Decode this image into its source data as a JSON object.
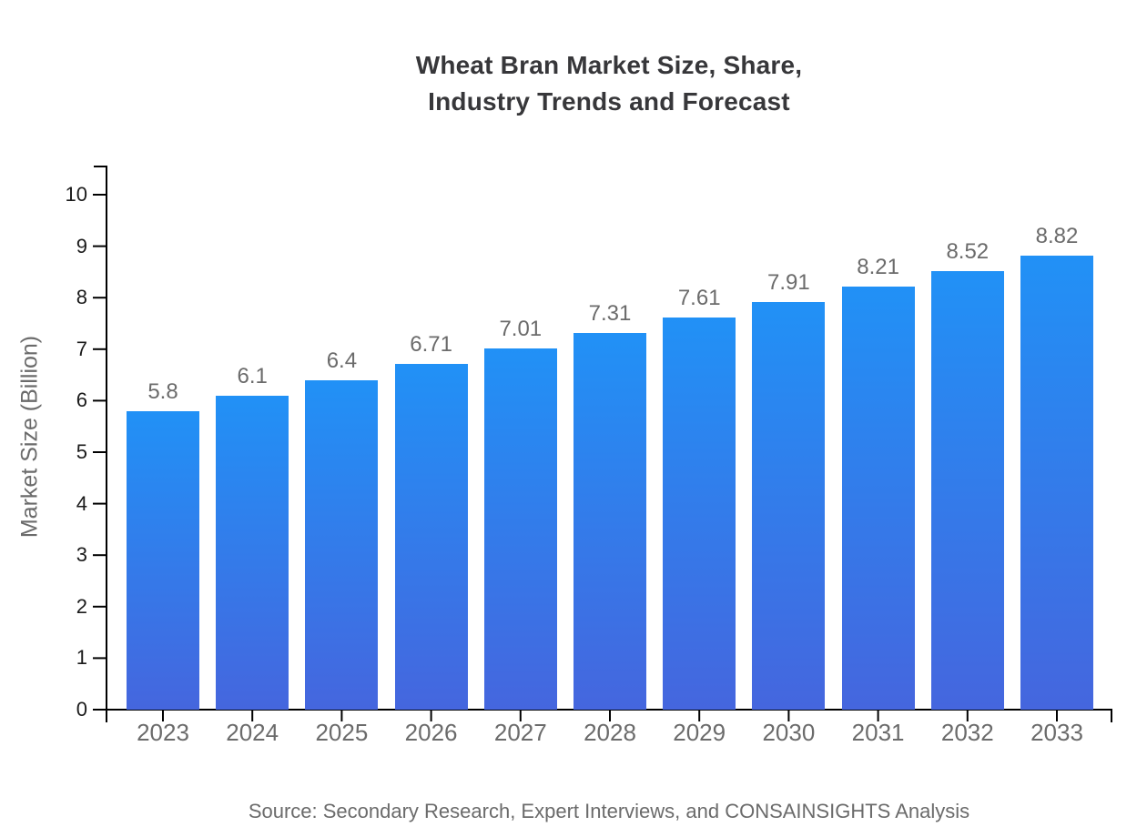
{
  "title": {
    "line1": "Wheat Bran Market Size, Share,",
    "line2": "Industry Trends and Forecast"
  },
  "source": "Source: Secondary Research, Expert Interviews, and CONSAINSIGHTS Analysis",
  "chart_data": {
    "type": "bar",
    "title": "Wheat Bran Market Size, Share, Industry Trends and Forecast",
    "categories": [
      "2023",
      "2024",
      "2025",
      "2026",
      "2027",
      "2028",
      "2029",
      "2030",
      "2031",
      "2032",
      "2033"
    ],
    "values": [
      5.8,
      6.1,
      6.4,
      6.71,
      7.01,
      7.31,
      7.61,
      7.91,
      8.21,
      8.52,
      8.82
    ],
    "value_labels": [
      "5.8",
      "6.1",
      "6.4",
      "6.71",
      "7.01",
      "7.31",
      "7.61",
      "7.91",
      "8.21",
      "8.52",
      "8.82"
    ],
    "xlabel": "",
    "ylabel": "Market Size (Billion)",
    "ylim": [
      0,
      10
    ],
    "yticks": [
      0,
      1,
      2,
      3,
      4,
      5,
      6,
      7,
      8,
      9,
      10
    ],
    "grid": false,
    "legend": false,
    "colors": {
      "bar_gradient_top": "#2191f6",
      "bar_gradient_bottom": "#4566de",
      "axis_line": "#000000",
      "tick_label_gray": "#6b6b6b",
      "y_tick_label": "#1a1a1a",
      "title_text": "#37373a"
    }
  }
}
